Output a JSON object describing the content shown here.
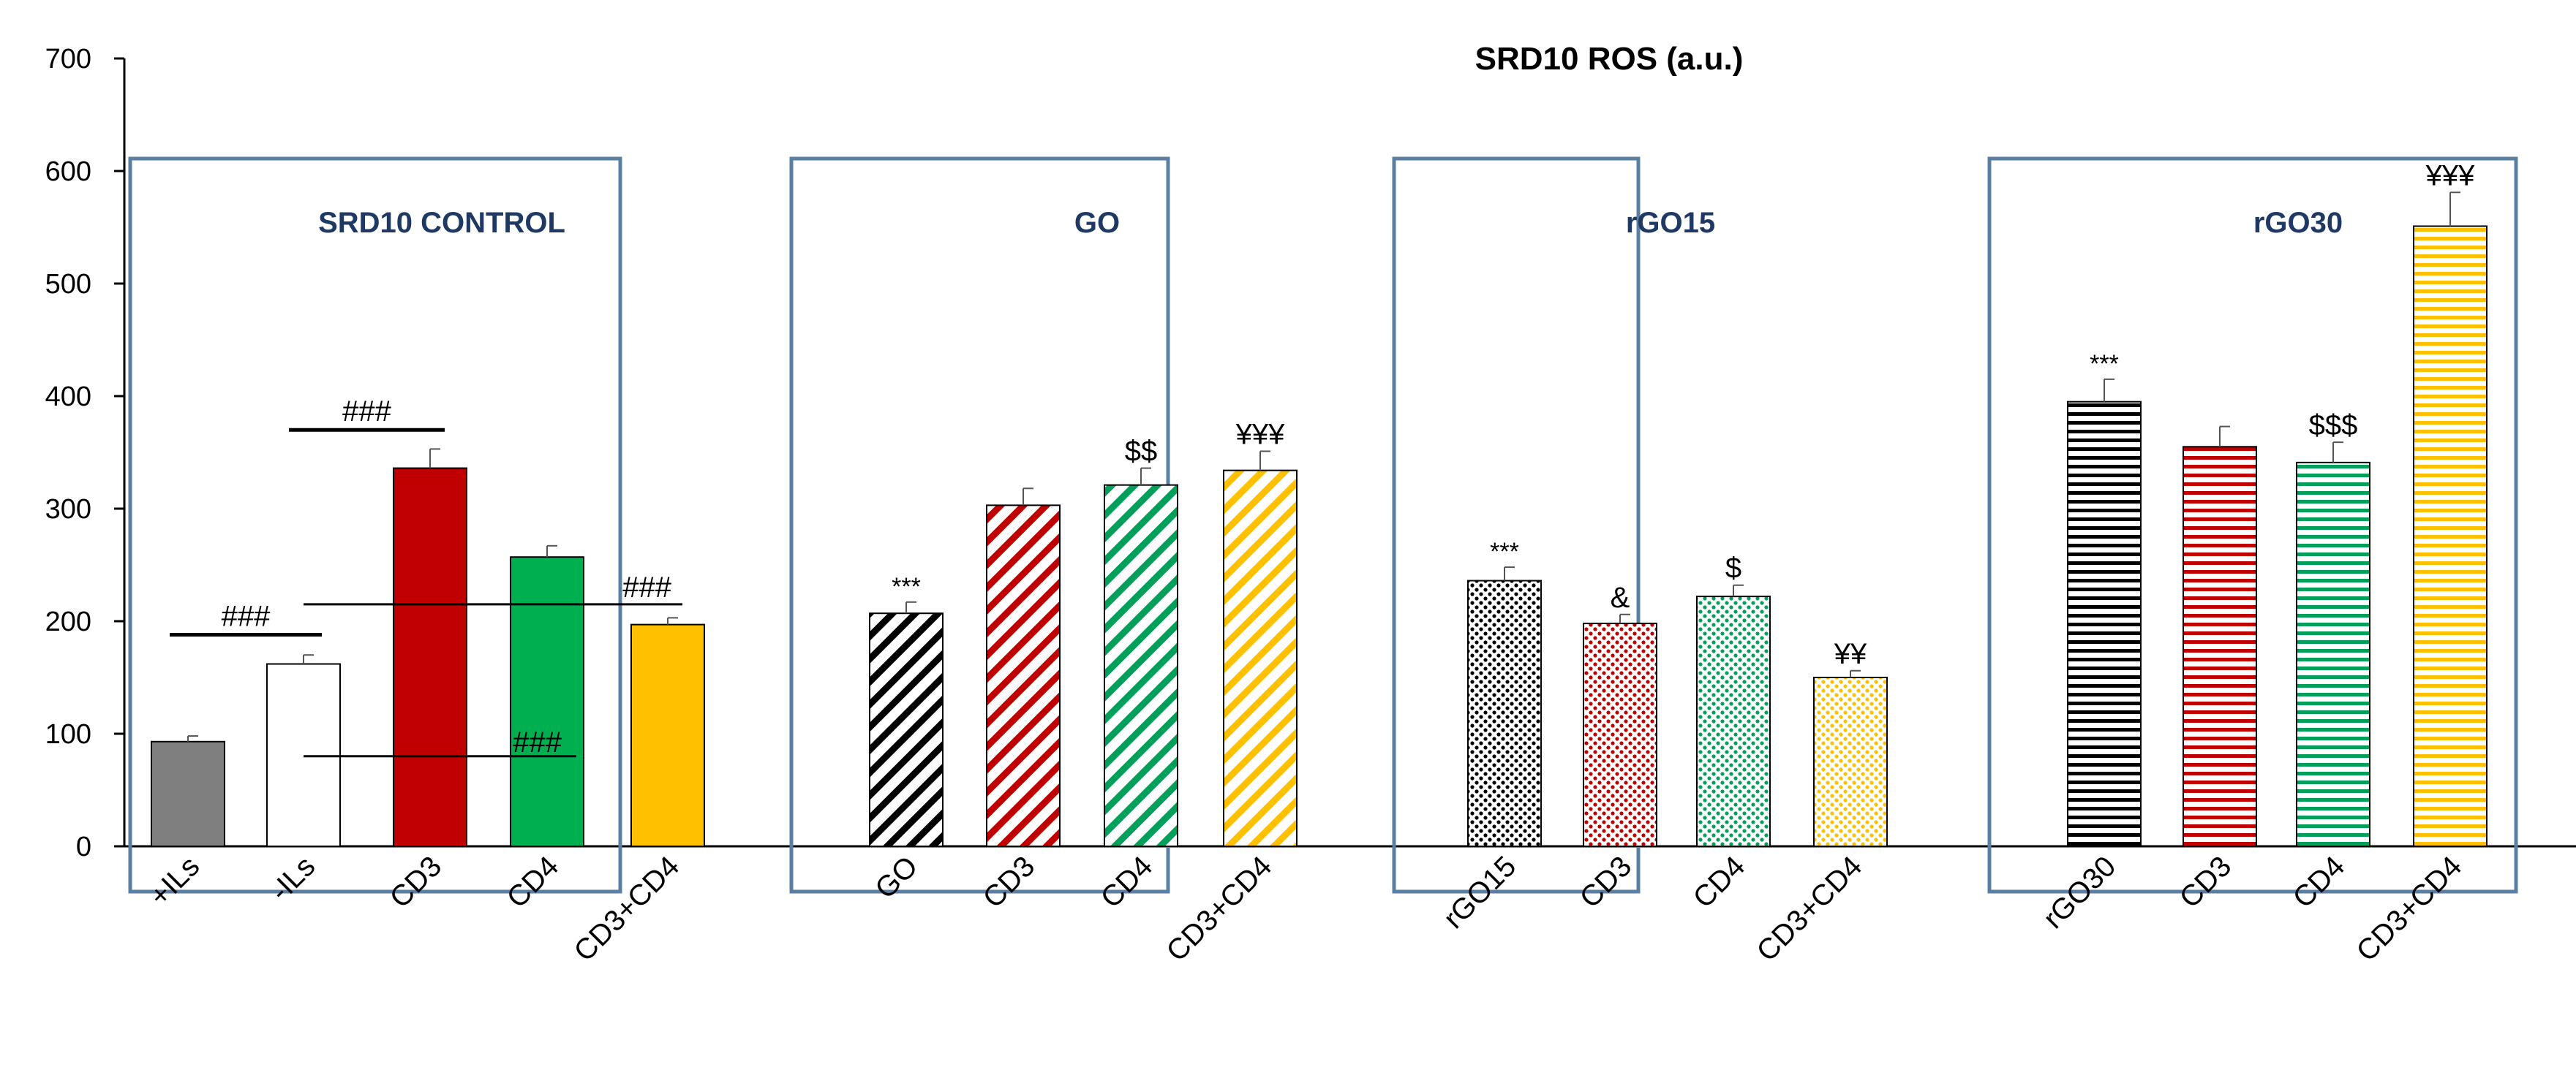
{
  "chart_data": {
    "type": "bar",
    "title": "SRD10 ROS (a.u.)",
    "ylim": [
      0,
      700
    ],
    "yticks": [
      0,
      100,
      200,
      300,
      400,
      500,
      600,
      700
    ],
    "grid": false,
    "panels": [
      {
        "title": "SRD10 CONTROL",
        "bars": [
          {
            "label": "+ILs",
            "value": 93,
            "error": 5,
            "color": "#7f7f7f",
            "pattern": "solid",
            "sig": ""
          },
          {
            "label": "-ILs",
            "value": 162,
            "error": 8,
            "color": "#ffffff",
            "pattern": "solid",
            "sig": ""
          },
          {
            "label": "CD3",
            "value": 336,
            "error": 17,
            "color": "#c00000",
            "pattern": "solid",
            "sig": ""
          },
          {
            "label": "CD4",
            "value": 257,
            "error": 10,
            "color": "#00b050",
            "pattern": "solid",
            "sig": ""
          },
          {
            "label": "CD3+CD4",
            "value": 197,
            "error": 6,
            "color": "#ffc000",
            "pattern": "solid",
            "sig": ""
          }
        ],
        "brackets": [
          {
            "label": "###",
            "from": 0,
            "to": 1,
            "y": 188
          },
          {
            "label": "###",
            "from": 1,
            "to": 2,
            "y": 370
          },
          {
            "label": "###",
            "from": 1,
            "to": 4,
            "y": 215
          },
          {
            "label": "###",
            "from": 1,
            "to": 3,
            "y": 80
          }
        ]
      },
      {
        "title": "GO",
        "bars": [
          {
            "label": "GO",
            "value": 207,
            "error": 10,
            "color": "#000000",
            "pattern": "diagonal",
            "sig": "***"
          },
          {
            "label": "CD3",
            "value": 303,
            "error": 15,
            "color": "#c00000",
            "pattern": "diagonal",
            "sig": ""
          },
          {
            "label": "CD4",
            "value": 321,
            "error": 15,
            "color": "#00a05a",
            "pattern": "diagonal",
            "sig": "$$"
          },
          {
            "label": "CD3+CD4",
            "value": 334,
            "error": 17,
            "color": "#ffc000",
            "pattern": "diagonal",
            "sig": "¥¥¥"
          }
        ],
        "brackets": []
      },
      {
        "title": "rGO15",
        "bars": [
          {
            "label": "rGO15",
            "value": 236,
            "error": 12,
            "color": "#000000",
            "pattern": "dots",
            "sig": "***"
          },
          {
            "label": "CD3",
            "value": 198,
            "error": 8,
            "color": "#c00000",
            "pattern": "dots",
            "sig": "&"
          },
          {
            "label": "CD4",
            "value": 222,
            "error": 10,
            "color": "#00a05a",
            "pattern": "dots",
            "sig": "$"
          },
          {
            "label": "CD3+CD4",
            "value": 150,
            "error": 6,
            "color": "#ffc000",
            "pattern": "dots",
            "sig": "¥¥"
          }
        ],
        "brackets": []
      },
      {
        "title": "rGO30",
        "bars": [
          {
            "label": "rGO30",
            "value": 395,
            "error": 20,
            "color": "#000000",
            "pattern": "horizontal",
            "sig": "***"
          },
          {
            "label": "CD3",
            "value": 355,
            "error": 18,
            "color": "#c00000",
            "pattern": "horizontal",
            "sig": ""
          },
          {
            "label": "CD4",
            "value": 341,
            "error": 18,
            "color": "#00a05a",
            "pattern": "horizontal",
            "sig": "$$$"
          },
          {
            "label": "CD3+CD4",
            "value": 551,
            "error": 30,
            "color": "#ffc000",
            "pattern": "horizontal",
            "sig": "¥¥¥"
          }
        ],
        "brackets": []
      }
    ]
  }
}
